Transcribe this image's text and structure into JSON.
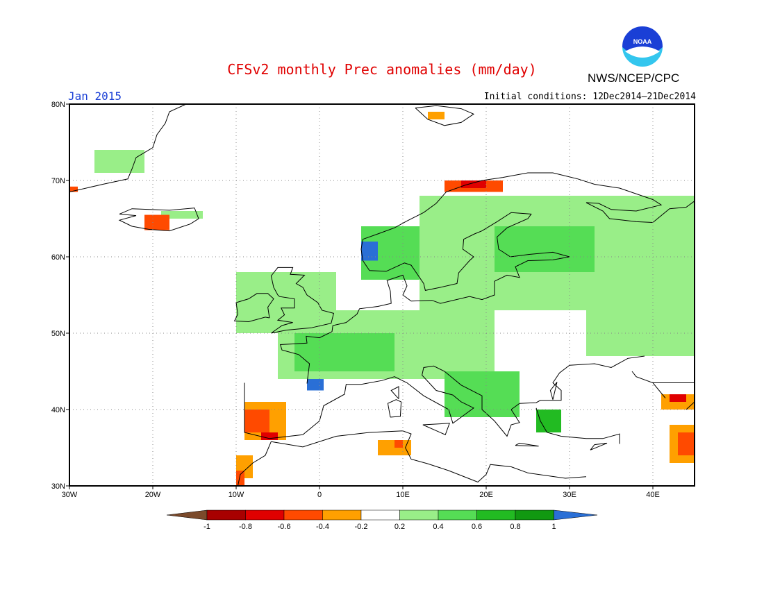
{
  "header": {
    "title": "CFSv2 monthly Prec anomalies (mm/day)",
    "month": "Jan 2015",
    "initial_conditions": "Initial conditions: 12Dec2014–21Dec2014",
    "agency": "NWS/NCEP/CPC",
    "logo_text": "NOAA"
  },
  "map": {
    "lon_range": [
      -30,
      45
    ],
    "lat_range": [
      30,
      80
    ],
    "lat_labels": [
      "80N",
      "70N",
      "60N",
      "50N",
      "40N",
      "30N"
    ],
    "lon_labels": [
      "30W",
      "20W",
      "10W",
      "0",
      "10E",
      "20E",
      "30E",
      "40E"
    ],
    "gridlines": "dotted"
  },
  "colorbar": {
    "labels": [
      "-1",
      "-0.8",
      "-0.6",
      "-0.4",
      "-0.2",
      "0.2",
      "0.4",
      "0.6",
      "0.8",
      "1"
    ],
    "colors": [
      "#7b4a2b",
      "#a80000",
      "#e00000",
      "#ff4a00",
      "#ffa000",
      "#ffffff",
      "#99ee88",
      "#55dd55",
      "#22bb22",
      "#119911",
      "#2a6fd6"
    ]
  },
  "anomaly_regions": [
    {
      "name": "scandinavia-east-wet",
      "color": "#99ee88",
      "lon": [
        12,
        45
      ],
      "lat": [
        53,
        68
      ]
    },
    {
      "name": "russia-wet",
      "color": "#99ee88",
      "lon": [
        32,
        45
      ],
      "lat": [
        47,
        65
      ]
    },
    {
      "name": "finland-wet-core",
      "color": "#55dd55",
      "lon": [
        21,
        33
      ],
      "lat": [
        58,
        64
      ]
    },
    {
      "name": "central-europe-wet",
      "color": "#99ee88",
      "lon": [
        -5,
        21
      ],
      "lat": [
        44,
        53
      ]
    },
    {
      "name": "france-wet-core",
      "color": "#55dd55",
      "lon": [
        -3,
        9
      ],
      "lat": [
        45,
        50
      ]
    },
    {
      "name": "british-isles-wet",
      "color": "#99ee88",
      "lon": [
        -10,
        2
      ],
      "lat": [
        50,
        58
      ]
    },
    {
      "name": "norway-coast-wet",
      "color": "#55dd55",
      "lon": [
        5,
        12
      ],
      "lat": [
        57,
        64
      ]
    },
    {
      "name": "norway-coast-very-wet",
      "color": "#2a6fd6",
      "lon": [
        5,
        7
      ],
      "lat": [
        59.5,
        62
      ]
    },
    {
      "name": "biscay-very-wet",
      "color": "#2a6fd6",
      "lon": [
        -1.5,
        0.5
      ],
      "lat": [
        42.5,
        44
      ]
    },
    {
      "name": "greenland-east-wet",
      "color": "#99ee88",
      "lon": [
        -27,
        -21
      ],
      "lat": [
        71,
        74
      ]
    },
    {
      "name": "iceland-wet",
      "color": "#99ee88",
      "lon": [
        -19,
        -14
      ],
      "lat": [
        65,
        66
      ]
    },
    {
      "name": "balkans-wet",
      "color": "#55dd55",
      "lon": [
        15,
        24
      ],
      "lat": [
        39,
        45
      ]
    },
    {
      "name": "turkey-west-wet",
      "color": "#22bb22",
      "lon": [
        26,
        29
      ],
      "lat": [
        37,
        40
      ]
    },
    {
      "name": "iberia-dry",
      "color": "#ffa000",
      "lon": [
        -9,
        -4
      ],
      "lat": [
        36,
        41
      ]
    },
    {
      "name": "iberia-very-dry",
      "color": "#ff4a00",
      "lon": [
        -9,
        -6
      ],
      "lat": [
        37,
        40
      ]
    },
    {
      "name": "iberia-extreme-dry",
      "color": "#e00000",
      "lon": [
        -7,
        -5
      ],
      "lat": [
        36,
        37
      ]
    },
    {
      "name": "morocco-dry",
      "color": "#ffa000",
      "lon": [
        -10,
        -8
      ],
      "lat": [
        31,
        34
      ]
    },
    {
      "name": "morocco-very-dry",
      "color": "#ff4a00",
      "lon": [
        -10,
        -9
      ],
      "lat": [
        30,
        32
      ]
    },
    {
      "name": "tunisia-dry",
      "color": "#ffa000",
      "lon": [
        7,
        11
      ],
      "lat": [
        34,
        36
      ]
    },
    {
      "name": "tunisia-very-dry",
      "color": "#ff4a00",
      "lon": [
        9,
        10
      ],
      "lat": [
        35,
        36
      ]
    },
    {
      "name": "norway-north-dry",
      "color": "#ff4a00",
      "lon": [
        15,
        22
      ],
      "lat": [
        68.5,
        70
      ]
    },
    {
      "name": "norway-north-very-dry",
      "color": "#e00000",
      "lon": [
        17,
        20
      ],
      "lat": [
        69,
        70
      ]
    },
    {
      "name": "iceland-dry",
      "color": "#ff4a00",
      "lon": [
        -21,
        -18
      ],
      "lat": [
        63.5,
        65.5
      ]
    },
    {
      "name": "greenland-dry",
      "color": "#ff4a00",
      "lon": [
        -30,
        -29
      ],
      "lat": [
        68.5,
        69.2
      ]
    },
    {
      "name": "caucasus-dry",
      "color": "#ffa000",
      "lon": [
        41,
        45
      ],
      "lat": [
        40,
        42
      ]
    },
    {
      "name": "caucasus-very-dry",
      "color": "#e00000",
      "lon": [
        42,
        44
      ],
      "lat": [
        41,
        42
      ]
    },
    {
      "name": "middle-east-dry",
      "color": "#ffa000",
      "lon": [
        42,
        45
      ],
      "lat": [
        33,
        38
      ]
    },
    {
      "name": "middle-east-very-dry",
      "color": "#ff4a00",
      "lon": [
        43,
        45
      ],
      "lat": [
        34,
        37
      ]
    },
    {
      "name": "svalbard-dry",
      "color": "#ffa000",
      "lon": [
        13,
        15
      ],
      "lat": [
        78,
        79
      ]
    }
  ]
}
